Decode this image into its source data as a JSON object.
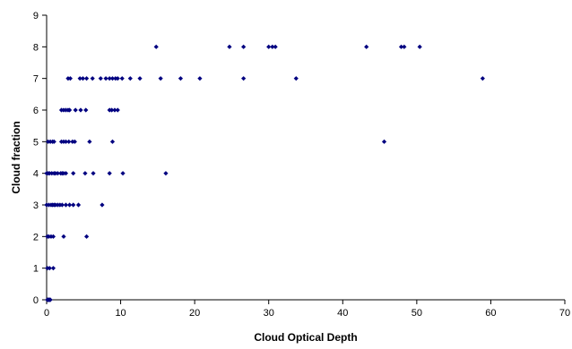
{
  "chart_data": {
    "type": "scatter",
    "title": "",
    "xlabel": "Cloud Optical Depth",
    "ylabel": "Cloud fraction",
    "xlim": [
      0,
      70
    ],
    "ylim": [
      0,
      9
    ],
    "x_ticks": [
      0,
      10,
      20,
      30,
      40,
      50,
      60,
      70
    ],
    "y_ticks": [
      0,
      1,
      2,
      3,
      4,
      5,
      6,
      7,
      8,
      9
    ],
    "x_tick_labels": [
      "0",
      "10",
      "20",
      "30",
      "40",
      "50",
      "60",
      "70"
    ],
    "y_tick_labels": [
      "0",
      "1",
      "2",
      "3",
      "4",
      "5",
      "6",
      "7",
      "8",
      "9"
    ],
    "grid": false,
    "legend": "none",
    "marker_color": "#000080",
    "series": [
      {
        "points": [
          [
            0.1,
            0
          ],
          [
            0.2,
            0
          ],
          [
            0.3,
            0
          ],
          [
            0.4,
            0
          ],
          [
            0.5,
            0
          ],
          [
            0.1,
            1
          ],
          [
            0.4,
            1
          ],
          [
            0.9,
            1
          ],
          [
            0.1,
            2
          ],
          [
            0.3,
            2
          ],
          [
            0.6,
            2
          ],
          [
            0.9,
            2
          ],
          [
            2.3,
            2
          ],
          [
            5.4,
            2
          ],
          [
            0.0,
            3
          ],
          [
            0.3,
            3
          ],
          [
            0.6,
            3
          ],
          [
            0.8,
            3
          ],
          [
            1.0,
            3
          ],
          [
            1.2,
            3
          ],
          [
            1.5,
            3
          ],
          [
            1.8,
            3
          ],
          [
            2.1,
            3
          ],
          [
            2.6,
            3
          ],
          [
            3.1,
            3
          ],
          [
            3.6,
            3
          ],
          [
            4.3,
            3
          ],
          [
            7.5,
            3
          ],
          [
            0.0,
            4
          ],
          [
            0.2,
            4
          ],
          [
            0.4,
            4
          ],
          [
            0.7,
            4
          ],
          [
            1.0,
            4
          ],
          [
            1.2,
            4
          ],
          [
            1.5,
            4
          ],
          [
            1.9,
            4
          ],
          [
            2.1,
            4
          ],
          [
            2.3,
            4
          ],
          [
            2.6,
            4
          ],
          [
            3.6,
            4
          ],
          [
            5.2,
            4
          ],
          [
            6.3,
            4
          ],
          [
            8.5,
            4
          ],
          [
            10.3,
            4
          ],
          [
            16.1,
            4
          ],
          [
            0.2,
            5
          ],
          [
            0.5,
            5
          ],
          [
            0.8,
            5
          ],
          [
            1.0,
            5
          ],
          [
            2.0,
            5
          ],
          [
            2.3,
            5
          ],
          [
            2.6,
            5
          ],
          [
            3.0,
            5
          ],
          [
            3.5,
            5
          ],
          [
            3.8,
            5
          ],
          [
            5.8,
            5
          ],
          [
            8.9,
            5
          ],
          [
            45.6,
            5
          ],
          [
            2.0,
            6
          ],
          [
            2.3,
            6
          ],
          [
            2.6,
            6
          ],
          [
            2.9,
            6
          ],
          [
            3.1,
            6
          ],
          [
            3.9,
            6
          ],
          [
            4.6,
            6
          ],
          [
            5.3,
            6
          ],
          [
            8.5,
            6
          ],
          [
            8.8,
            6
          ],
          [
            9.2,
            6
          ],
          [
            9.6,
            6
          ],
          [
            2.9,
            7
          ],
          [
            3.2,
            7
          ],
          [
            4.5,
            7
          ],
          [
            4.9,
            7
          ],
          [
            5.4,
            7
          ],
          [
            6.2,
            7
          ],
          [
            7.3,
            7
          ],
          [
            8.0,
            7
          ],
          [
            8.5,
            7
          ],
          [
            8.9,
            7
          ],
          [
            9.3,
            7
          ],
          [
            9.6,
            7
          ],
          [
            10.2,
            7
          ],
          [
            11.3,
            7
          ],
          [
            12.6,
            7
          ],
          [
            15.4,
            7
          ],
          [
            18.1,
            7
          ],
          [
            20.7,
            7
          ],
          [
            26.6,
            7
          ],
          [
            33.7,
            7
          ],
          [
            58.9,
            7
          ],
          [
            14.8,
            8
          ],
          [
            24.7,
            8
          ],
          [
            26.6,
            8
          ],
          [
            30.0,
            8
          ],
          [
            30.5,
            8
          ],
          [
            30.9,
            8
          ],
          [
            43.2,
            8
          ],
          [
            47.9,
            8
          ],
          [
            48.3,
            8
          ],
          [
            50.4,
            8
          ]
        ]
      }
    ]
  }
}
